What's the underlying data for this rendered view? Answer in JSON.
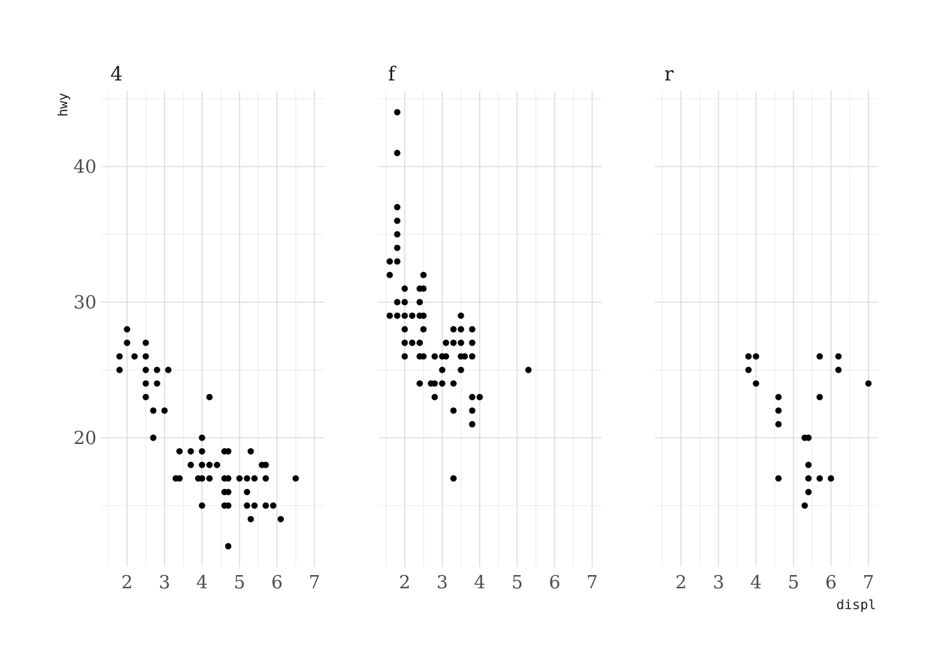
{
  "chart_data": {
    "type": "scatter",
    "facet_by": "drv",
    "xlabel": "displ",
    "ylabel": "hwy",
    "xlim": [
      1.5,
      7.2
    ],
    "ylim": [
      10.5,
      45.5
    ],
    "x_ticks": [
      2,
      3,
      4,
      5,
      6,
      7
    ],
    "y_ticks": [
      20,
      30,
      40
    ],
    "grid": true,
    "legend": "none",
    "point_color": "#000000",
    "panels": [
      {
        "label": "4",
        "points": [
          [
            1.8,
            26
          ],
          [
            1.8,
            25
          ],
          [
            2,
            28
          ],
          [
            2,
            27
          ],
          [
            2.2,
            26
          ],
          [
            2.5,
            27
          ],
          [
            2.5,
            26
          ],
          [
            2.5,
            25
          ],
          [
            2.5,
            24
          ],
          [
            2.5,
            23
          ],
          [
            2.7,
            22
          ],
          [
            2.7,
            20
          ],
          [
            2.8,
            25
          ],
          [
            2.8,
            24
          ],
          [
            3,
            22
          ],
          [
            3.1,
            25
          ],
          [
            3.3,
            17
          ],
          [
            3.4,
            17
          ],
          [
            3.4,
            19
          ],
          [
            3.7,
            19
          ],
          [
            3.7,
            18
          ],
          [
            3.9,
            17
          ],
          [
            4,
            20
          ],
          [
            4,
            19
          ],
          [
            4,
            18
          ],
          [
            4,
            17
          ],
          [
            4,
            15
          ],
          [
            4.2,
            23
          ],
          [
            4.2,
            18
          ],
          [
            4.2,
            17
          ],
          [
            4.4,
            18
          ],
          [
            4.6,
            19
          ],
          [
            4.6,
            17
          ],
          [
            4.6,
            16
          ],
          [
            4.6,
            15
          ],
          [
            4.7,
            19
          ],
          [
            4.7,
            17
          ],
          [
            4.7,
            16
          ],
          [
            4.7,
            15
          ],
          [
            4.7,
            12
          ],
          [
            5,
            17
          ],
          [
            5.2,
            17
          ],
          [
            5.2,
            16
          ],
          [
            5.2,
            15
          ],
          [
            5.3,
            19
          ],
          [
            5.3,
            14
          ],
          [
            5.4,
            17
          ],
          [
            5.4,
            15
          ],
          [
            5.6,
            18
          ],
          [
            5.7,
            18
          ],
          [
            5.7,
            17
          ],
          [
            5.7,
            15
          ],
          [
            5.9,
            15
          ],
          [
            6.1,
            14
          ],
          [
            6.5,
            17
          ]
        ]
      },
      {
        "label": "f",
        "points": [
          [
            1.6,
            33
          ],
          [
            1.6,
            32
          ],
          [
            1.6,
            29
          ],
          [
            1.8,
            44
          ],
          [
            1.8,
            41
          ],
          [
            1.8,
            37
          ],
          [
            1.8,
            36
          ],
          [
            1.8,
            35
          ],
          [
            1.8,
            34
          ],
          [
            1.8,
            33
          ],
          [
            1.8,
            30
          ],
          [
            1.8,
            29
          ],
          [
            2,
            31
          ],
          [
            2,
            30
          ],
          [
            2,
            29
          ],
          [
            2,
            28
          ],
          [
            2,
            27
          ],
          [
            2,
            26
          ],
          [
            2.2,
            29
          ],
          [
            2.2,
            27
          ],
          [
            2.4,
            31
          ],
          [
            2.4,
            30
          ],
          [
            2.4,
            29
          ],
          [
            2.4,
            27
          ],
          [
            2.4,
            26
          ],
          [
            2.4,
            24
          ],
          [
            2.5,
            32
          ],
          [
            2.5,
            31
          ],
          [
            2.5,
            29
          ],
          [
            2.5,
            28
          ],
          [
            2.5,
            26
          ],
          [
            2.7,
            24
          ],
          [
            2.8,
            26
          ],
          [
            2.8,
            24
          ],
          [
            2.8,
            23
          ],
          [
            3,
            26
          ],
          [
            3,
            25
          ],
          [
            3,
            24
          ],
          [
            3.1,
            27
          ],
          [
            3.1,
            26
          ],
          [
            3.3,
            28
          ],
          [
            3.3,
            27
          ],
          [
            3.3,
            24
          ],
          [
            3.3,
            22
          ],
          [
            3.3,
            17
          ],
          [
            3.5,
            29
          ],
          [
            3.5,
            28
          ],
          [
            3.5,
            27
          ],
          [
            3.5,
            26
          ],
          [
            3.5,
            25
          ],
          [
            3.6,
            26
          ],
          [
            3.8,
            28
          ],
          [
            3.8,
            27
          ],
          [
            3.8,
            26
          ],
          [
            3.8,
            23
          ],
          [
            3.8,
            22
          ],
          [
            3.8,
            21
          ],
          [
            4,
            23
          ],
          [
            5.3,
            25
          ]
        ]
      },
      {
        "label": "r",
        "points": [
          [
            3.8,
            26
          ],
          [
            3.8,
            25
          ],
          [
            4,
            26
          ],
          [
            4,
            24
          ],
          [
            4.6,
            23
          ],
          [
            4.6,
            22
          ],
          [
            4.6,
            21
          ],
          [
            4.6,
            17
          ],
          [
            5.3,
            20
          ],
          [
            5.3,
            15
          ],
          [
            5.4,
            20
          ],
          [
            5.4,
            18
          ],
          [
            5.4,
            17
          ],
          [
            5.4,
            16
          ],
          [
            5.7,
            26
          ],
          [
            5.7,
            23
          ],
          [
            5.7,
            17
          ],
          [
            6,
            17
          ],
          [
            6.2,
            26
          ],
          [
            6.2,
            25
          ],
          [
            7,
            24
          ]
        ]
      }
    ]
  }
}
